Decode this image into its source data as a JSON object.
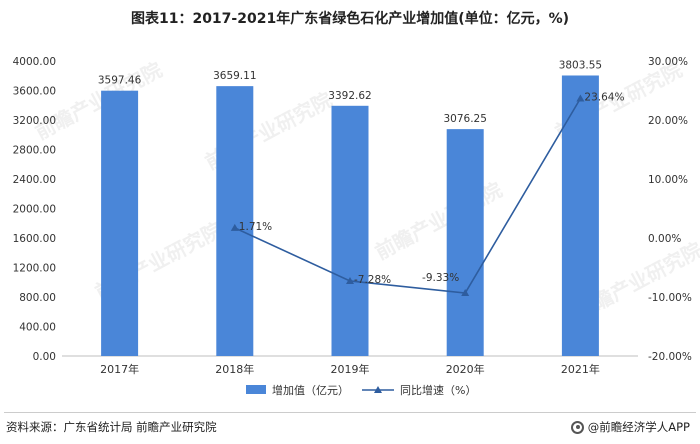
{
  "title": "图表11：2017-2021年广东省绿色石化产业增加值(单位：亿元，%)",
  "source": "资料来源：广东省统计局 前瞻产业研究院",
  "brand": "@前瞻经济学人APP",
  "watermark": "前瞻产业研究院",
  "chart_data": {
    "type": "bar",
    "categories": [
      "2017年",
      "2018年",
      "2019年",
      "2020年",
      "2021年"
    ],
    "series": [
      {
        "name": "增加值（亿元）",
        "type": "bar",
        "axis": "left",
        "color": "#4a86d8",
        "values": [
          3597.46,
          3659.11,
          3392.62,
          3076.25,
          3803.55
        ],
        "labels": [
          "3597.46",
          "3659.11",
          "3392.62",
          "3076.25",
          "3803.55"
        ]
      },
      {
        "name": "同比增速（%）",
        "type": "line",
        "axis": "right",
        "color": "#2e5d9f",
        "values": [
          null,
          1.71,
          -7.28,
          -9.33,
          23.64
        ],
        "labels": [
          "",
          "1.71%",
          "-7.28%",
          "-9.33%",
          "23.64%"
        ]
      }
    ],
    "y_left": {
      "ylim": [
        0,
        4000
      ],
      "ticks": [
        0,
        400,
        800,
        1200,
        1600,
        2000,
        2400,
        2800,
        3200,
        3600,
        4000
      ],
      "tick_labels": [
        "0.00",
        "400.00",
        "800.00",
        "1200.00",
        "1600.00",
        "2000.00",
        "2400.00",
        "2800.00",
        "3200.00",
        "3600.00",
        "4000.00"
      ]
    },
    "y_right": {
      "ylim": [
        -20,
        30
      ],
      "ticks": [
        -20,
        -10,
        0,
        10,
        20,
        30
      ],
      "tick_labels": [
        "-20.00%",
        "-10.00%",
        "0.00%",
        "10.00%",
        "20.00%",
        "30.00%"
      ]
    },
    "legend_position": "bottom",
    "grid": false
  }
}
